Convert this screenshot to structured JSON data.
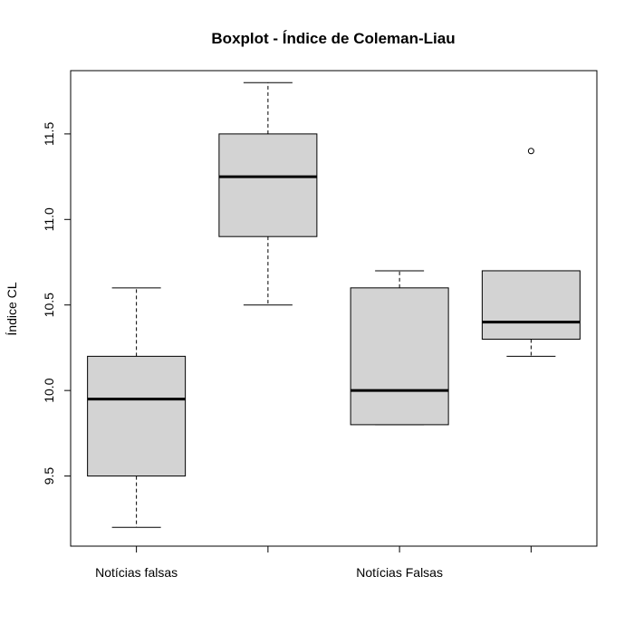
{
  "chart_data": {
    "type": "boxplot",
    "title": "Boxplot - Índice de Coleman-Liau",
    "xlabel": "",
    "ylabel": "Índice CL",
    "ylim": [
      9.09,
      11.87
    ],
    "y_ticks": [
      9.5,
      10.0,
      10.5,
      11.0,
      11.5
    ],
    "y_tick_labels": [
      "9.5",
      "10.0",
      "10.5",
      "11.0",
      "11.5"
    ],
    "x_tick_labels": [
      "Notícias falsas",
      "",
      "Notícias Falsas",
      ""
    ],
    "box_color": "#d3d3d3",
    "boxes": [
      {
        "whisker_low": 9.2,
        "q1": 9.5,
        "median": 9.95,
        "q3": 10.2,
        "whisker_high": 10.6,
        "outliers": []
      },
      {
        "whisker_low": 10.5,
        "q1": 10.9,
        "median": 11.25,
        "q3": 11.5,
        "whisker_high": 11.8,
        "outliers": []
      },
      {
        "whisker_low": 9.8,
        "q1": 9.8,
        "median": 10.0,
        "q3": 10.6,
        "whisker_high": 10.7,
        "outliers": []
      },
      {
        "whisker_low": 10.2,
        "q1": 10.3,
        "median": 10.4,
        "q3": 10.7,
        "whisker_high": 10.7,
        "outliers": [
          11.4
        ]
      }
    ]
  }
}
